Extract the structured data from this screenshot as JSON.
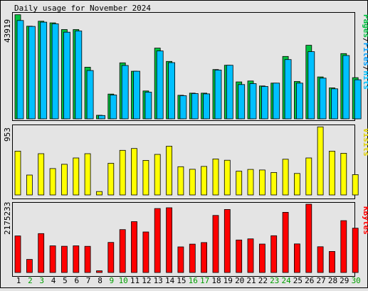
{
  "title": "Daily usage for November 2024",
  "colors": {
    "background": "#e4e4e4",
    "frame": "#000000",
    "plot_bg": "#ffffff",
    "pages": "#00c040",
    "files": "#00a0ff",
    "hits": "#00c0ff",
    "visits": "#ffff00",
    "kbytes": "#ff0000",
    "day_weekday": "#000000",
    "day_weekend": "#00a000"
  },
  "chart_data": [
    {
      "type": "bar",
      "name": "hits-pages-files",
      "categories": [
        "1",
        "2",
        "3",
        "4",
        "5",
        "6",
        "7",
        "8",
        "9",
        "10",
        "11",
        "12",
        "13",
        "14",
        "15",
        "16",
        "17",
        "18",
        "19",
        "20",
        "21",
        "22",
        "23",
        "24",
        "25",
        "26",
        "27",
        "28",
        "29",
        "30"
      ],
      "ymax_label": "43919",
      "ylim": [
        0,
        43919
      ],
      "legend": [
        "Pages",
        "Files",
        "Hits"
      ],
      "series": [
        {
          "name": "Pages",
          "values": [
            43700,
            38900,
            41000,
            40300,
            37500,
            37500,
            21700,
            1500,
            10400,
            23500,
            20000,
            11700,
            29700,
            24100,
            9900,
            10800,
            10800,
            20700,
            22500,
            15500,
            15900,
            13800,
            15000,
            26200,
            15700,
            30900,
            17600,
            13000,
            27400,
            17300
          ]
        },
        {
          "name": "Files",
          "values": [
            41300,
            38800,
            40600,
            39900,
            36400,
            36900,
            20300,
            1400,
            10000,
            22400,
            20000,
            11200,
            28500,
            23600,
            9700,
            10600,
            10500,
            20500,
            22500,
            14400,
            14800,
            13600,
            15000,
            24900,
            15000,
            28200,
            17100,
            12600,
            26600,
            16400
          ]
        },
        {
          "name": "Hits",
          "values": [
            41300,
            38800,
            40600,
            39900,
            36400,
            36900,
            20300,
            1400,
            10000,
            22400,
            20000,
            11200,
            28500,
            23600,
            9700,
            10600,
            10500,
            20500,
            22500,
            14400,
            14800,
            13600,
            15000,
            24900,
            15000,
            28200,
            17100,
            12600,
            26600,
            16400
          ]
        }
      ]
    },
    {
      "type": "bar",
      "name": "visits",
      "categories": [
        "1",
        "2",
        "3",
        "4",
        "5",
        "6",
        "7",
        "8",
        "9",
        "10",
        "11",
        "12",
        "13",
        "14",
        "15",
        "16",
        "17",
        "18",
        "19",
        "20",
        "21",
        "22",
        "23",
        "24",
        "25",
        "26",
        "27",
        "28",
        "29",
        "30"
      ],
      "ymax_label": "953",
      "ylim": [
        0,
        953
      ],
      "legend": [
        "Visits"
      ],
      "series": [
        {
          "name": "Visits",
          "values": [
            612,
            278,
            576,
            368,
            428,
            516,
            576,
            48,
            442,
            622,
            648,
            482,
            566,
            680,
            394,
            358,
            398,
            502,
            484,
            332,
            356,
            348,
            314,
            498,
            300,
            516,
            950,
            612,
            582,
            284
          ]
        }
      ]
    },
    {
      "type": "bar",
      "name": "kbytes",
      "categories": [
        "1",
        "2",
        "3",
        "4",
        "5",
        "6",
        "7",
        "8",
        "9",
        "10",
        "11",
        "12",
        "13",
        "14",
        "15",
        "16",
        "17",
        "18",
        "19",
        "20",
        "21",
        "22",
        "23",
        "24",
        "25",
        "26",
        "27",
        "28",
        "29",
        "30"
      ],
      "ymax_label": "2175233",
      "ylim": [
        0,
        2175233
      ],
      "legend": [
        "KBytes"
      ],
      "series": [
        {
          "name": "KBytes",
          "values": [
            1165000,
            416000,
            1240000,
            849000,
            835000,
            849000,
            833000,
            55000,
            958000,
            1366000,
            1620000,
            1291000,
            2036000,
            2063000,
            815000,
            905000,
            954000,
            1817000,
            2008000,
            1036000,
            1071000,
            907000,
            1172000,
            1917000,
            910000,
            2175233,
            820000,
            670000,
            1652000,
            1412000
          ]
        }
      ]
    }
  ],
  "days": [
    {
      "label": "1",
      "weekend": false
    },
    {
      "label": "2",
      "weekend": true
    },
    {
      "label": "3",
      "weekend": true
    },
    {
      "label": "4",
      "weekend": false
    },
    {
      "label": "5",
      "weekend": false
    },
    {
      "label": "6",
      "weekend": false
    },
    {
      "label": "7",
      "weekend": false
    },
    {
      "label": "8",
      "weekend": false
    },
    {
      "label": "9",
      "weekend": true
    },
    {
      "label": "10",
      "weekend": true
    },
    {
      "label": "11",
      "weekend": false
    },
    {
      "label": "12",
      "weekend": false
    },
    {
      "label": "13",
      "weekend": false
    },
    {
      "label": "14",
      "weekend": false
    },
    {
      "label": "15",
      "weekend": false
    },
    {
      "label": "16",
      "weekend": true
    },
    {
      "label": "17",
      "weekend": true
    },
    {
      "label": "18",
      "weekend": false
    },
    {
      "label": "19",
      "weekend": false
    },
    {
      "label": "20",
      "weekend": false
    },
    {
      "label": "21",
      "weekend": false
    },
    {
      "label": "22",
      "weekend": false
    },
    {
      "label": "23",
      "weekend": true
    },
    {
      "label": "24",
      "weekend": true
    },
    {
      "label": "25",
      "weekend": false
    },
    {
      "label": "26",
      "weekend": false
    },
    {
      "label": "27",
      "weekend": false
    },
    {
      "label": "28",
      "weekend": false
    },
    {
      "label": "29",
      "weekend": false
    },
    {
      "label": "30",
      "weekend": true
    }
  ]
}
